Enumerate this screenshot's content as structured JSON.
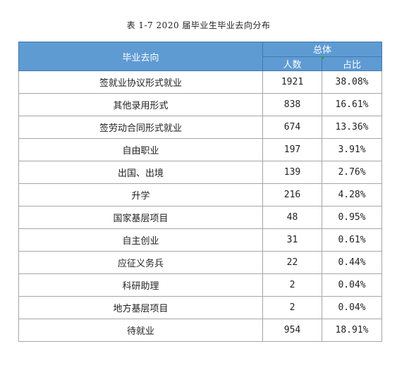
{
  "caption": "表 1-7   2020 届毕业生毕业去向分布",
  "header": {
    "destination": "毕业去向",
    "total": "总体",
    "count": "人数",
    "percent": "占比"
  },
  "rows": [
    {
      "destination": "签就业协议形式就业",
      "count": "1921",
      "percent": "38.08%"
    },
    {
      "destination": "其他录用形式",
      "count": "838",
      "percent": "16.61%"
    },
    {
      "destination": "签劳动合同形式就业",
      "count": "674",
      "percent": "13.36%"
    },
    {
      "destination": "自由职业",
      "count": "197",
      "percent": "3.91%"
    },
    {
      "destination": "出国、出境",
      "count": "139",
      "percent": "2.76%"
    },
    {
      "destination": "升学",
      "count": "216",
      "percent": "4.28%"
    },
    {
      "destination": "国家基层项目",
      "count": "48",
      "percent": "0.95%"
    },
    {
      "destination": "自主创业",
      "count": "31",
      "percent": "0.61%"
    },
    {
      "destination": "应征义务兵",
      "count": "22",
      "percent": "0.44%"
    },
    {
      "destination": "科研助理",
      "count": "2",
      "percent": "0.04%"
    },
    {
      "destination": "地方基层项目",
      "count": "2",
      "percent": "0.04%"
    },
    {
      "destination": "待就业",
      "count": "954",
      "percent": "18.91%"
    }
  ],
  "colors": {
    "header_background": "#5f9bd3",
    "header_text": "#ffffff",
    "border": "#a6a6a6",
    "cell_marker": "#2e9e3e"
  }
}
